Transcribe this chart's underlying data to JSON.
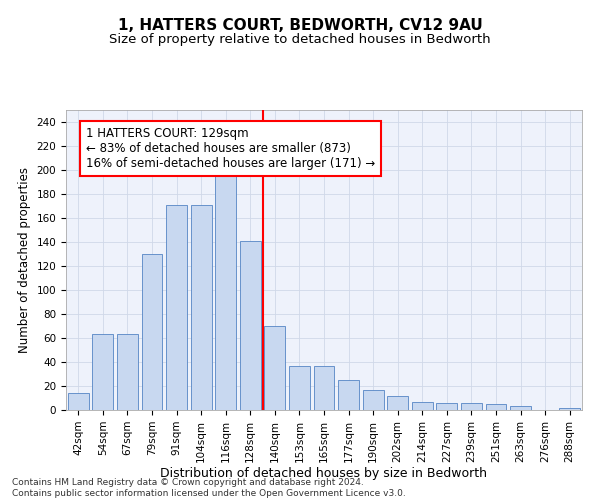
{
  "title": "1, HATTERS COURT, BEDWORTH, CV12 9AU",
  "subtitle": "Size of property relative to detached houses in Bedworth",
  "xlabel": "Distribution of detached houses by size in Bedworth",
  "ylabel": "Number of detached properties",
  "categories": [
    "42sqm",
    "54sqm",
    "67sqm",
    "79sqm",
    "91sqm",
    "104sqm",
    "116sqm",
    "128sqm",
    "140sqm",
    "153sqm",
    "165sqm",
    "177sqm",
    "190sqm",
    "202sqm",
    "214sqm",
    "227sqm",
    "239sqm",
    "251sqm",
    "263sqm",
    "276sqm",
    "288sqm"
  ],
  "values": [
    14,
    63,
    63,
    130,
    171,
    171,
    199,
    141,
    70,
    37,
    37,
    25,
    17,
    12,
    7,
    6,
    6,
    5,
    3,
    0,
    2
  ],
  "bar_color": "#c8d8f0",
  "bar_edge_color": "#5585c5",
  "vline_x": 7.5,
  "vline_color": "red",
  "annotation_box_text": "1 HATTERS COURT: 129sqm\n← 83% of detached houses are smaller (873)\n16% of semi-detached houses are larger (171) →",
  "grid_color": "#d0d8e8",
  "background_color": "#eef2fb",
  "ylim": [
    0,
    250
  ],
  "yticks": [
    0,
    20,
    40,
    60,
    80,
    100,
    120,
    140,
    160,
    180,
    200,
    220,
    240
  ],
  "footer_line1": "Contains HM Land Registry data © Crown copyright and database right 2024.",
  "footer_line2": "Contains public sector information licensed under the Open Government Licence v3.0.",
  "title_fontsize": 11,
  "subtitle_fontsize": 9.5,
  "xlabel_fontsize": 9,
  "ylabel_fontsize": 8.5,
  "tick_fontsize": 7.5,
  "annotation_fontsize": 8.5,
  "footer_fontsize": 6.5
}
